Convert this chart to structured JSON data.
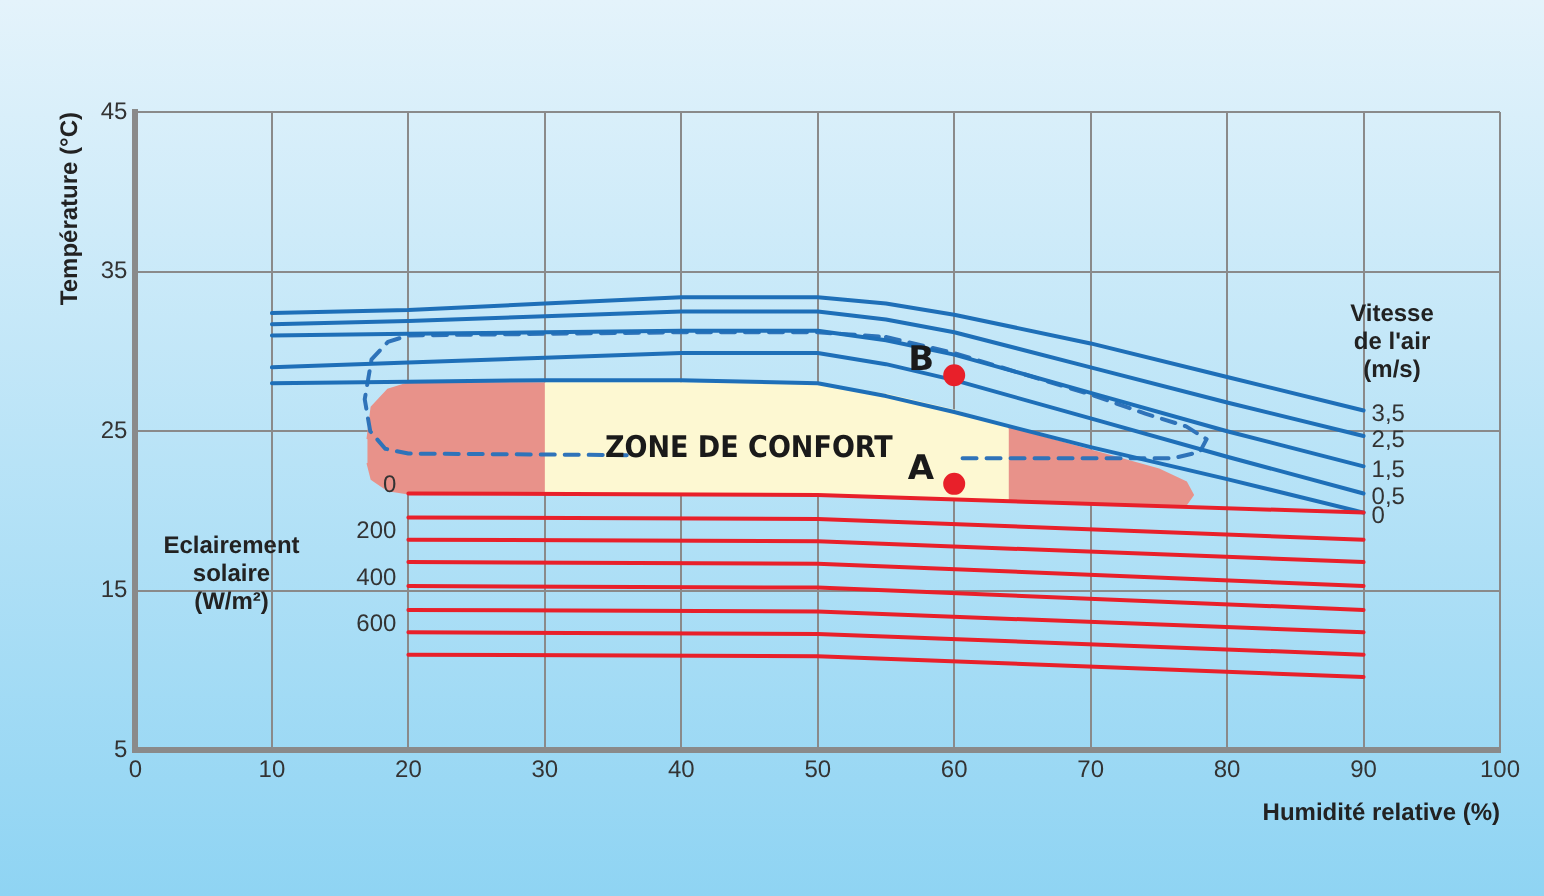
{
  "chart_data": {
    "type": "line",
    "xlabel": "Humidité relative (%)",
    "ylabel": "Température (°C)",
    "xlim": [
      0,
      100
    ],
    "xticks": [
      0,
      10,
      20,
      30,
      40,
      50,
      60,
      70,
      80,
      90,
      100
    ],
    "ylim": [
      5,
      45
    ],
    "yticks": [
      5,
      15,
      25,
      35,
      45
    ],
    "grid": true,
    "marker": "none",
    "annotations": [
      "Vitesse de l'air (m/s)",
      "Eclairement solaire (W/m²)",
      "ZONE DE CONFORT",
      {
        "text": "A",
        "x": 60,
        "y": 21.7
      },
      {
        "text": "B",
        "x": 60,
        "y": 28.5
      }
    ],
    "series": [
      {
        "type": "area",
        "color": "#e8928a",
        "x": [
          17,
          17.3,
          18.5,
          20,
          30,
          30,
          20,
          18.5,
          17.3,
          17
        ],
        "values": [
          24.5,
          26.5,
          27.6,
          28.0,
          28.0,
          21.1,
          21.1,
          21.3,
          22.0,
          23.0
        ]
      },
      {
        "type": "area",
        "color": "#fdf8d2",
        "x": [
          30,
          40,
          50,
          55,
          60,
          64,
          64,
          60,
          55,
          50,
          40,
          30
        ],
        "values": [
          28.0,
          28.0,
          27.9,
          27.3,
          26.3,
          25.2,
          20.6,
          20.7,
          20.9,
          21.0,
          21.1,
          21.1
        ]
      },
      {
        "type": "area",
        "color": "#e8928a",
        "x": [
          64,
          70,
          75,
          77,
          77.5,
          77,
          75,
          70,
          64
        ],
        "values": [
          25.2,
          23.8,
          22.6,
          21.8,
          21.0,
          20.4,
          20.4,
          20.5,
          20.6
        ]
      },
      {
        "type": "line",
        "color": "#2f73b9",
        "line_style": "dashed",
        "x": [
          55,
          60,
          65,
          70,
          74,
          77,
          78.5,
          78,
          76,
          60,
          47,
          36,
          20,
          18.3,
          17.2,
          16.8,
          17.3,
          18.5,
          20,
          30,
          40,
          50,
          55
        ],
        "values": [
          30.9,
          29.9,
          28.6,
          27.3,
          26.1,
          25.3,
          24.5,
          23.7,
          23.3,
          23.3,
          null,
          23.5,
          23.6,
          23.9,
          25.0,
          27.0,
          29.5,
          30.6,
          31.0,
          31.1,
          31.2,
          31.2,
          30.9
        ]
      },
      {
        "name": "3,5",
        "color": "#1e6fb8",
        "x": [
          10,
          20,
          30,
          40,
          50,
          55,
          60,
          70,
          80,
          90
        ],
        "values": [
          32.4,
          32.6,
          33.0,
          33.4,
          33.4,
          33.0,
          32.3,
          30.5,
          28.4,
          26.3
        ]
      },
      {
        "name": "2,5",
        "color": "#1e6fb8",
        "x": [
          10,
          20,
          30,
          40,
          50,
          55,
          60,
          70,
          80,
          90
        ],
        "values": [
          31.7,
          31.9,
          32.2,
          32.5,
          32.5,
          32.0,
          31.2,
          29.0,
          26.8,
          24.7
        ]
      },
      {
        "name": "1,5",
        "color": "#1e6fb8",
        "x": [
          10,
          20,
          30,
          40,
          50,
          55,
          60,
          70,
          80,
          90
        ],
        "values": [
          31.0,
          31.1,
          31.2,
          31.3,
          31.3,
          30.7,
          29.8,
          27.4,
          25.0,
          22.8
        ]
      },
      {
        "name": "0,5",
        "color": "#1e6fb8",
        "x": [
          10,
          20,
          30,
          40,
          50,
          55,
          60,
          70,
          80,
          90
        ],
        "values": [
          29.0,
          29.3,
          29.6,
          29.9,
          29.9,
          29.2,
          28.2,
          25.8,
          23.4,
          21.1
        ]
      },
      {
        "name": "0",
        "color": "#1e6fb8",
        "x": [
          10,
          20,
          30,
          40,
          50,
          55,
          60,
          70,
          80,
          90
        ],
        "values": [
          28.0,
          28.1,
          28.2,
          28.2,
          28.0,
          27.2,
          26.2,
          24.0,
          22.0,
          19.9
        ]
      },
      {
        "name": "0",
        "color": "#e8202a",
        "x": [
          20,
          50,
          90
        ],
        "values": [
          21.1,
          21.0,
          19.9
        ]
      },
      {
        "color": "#e8202a",
        "x": [
          20,
          50,
          90
        ],
        "values": [
          19.6,
          19.5,
          18.2
        ]
      },
      {
        "name": "200",
        "color": "#e8202a",
        "x": [
          20,
          50,
          90
        ],
        "values": [
          18.2,
          18.1,
          16.8
        ]
      },
      {
        "color": "#e8202a",
        "x": [
          20,
          50,
          90
        ],
        "values": [
          16.8,
          16.7,
          15.3
        ]
      },
      {
        "name": "400",
        "color": "#e8202a",
        "x": [
          20,
          50,
          90
        ],
        "values": [
          15.3,
          15.2,
          13.8
        ]
      },
      {
        "color": "#e8202a",
        "x": [
          20,
          50,
          90
        ],
        "values": [
          13.8,
          13.7,
          12.4
        ]
      },
      {
        "name": "600",
        "color": "#e8202a",
        "x": [
          20,
          50,
          90
        ],
        "values": [
          12.4,
          12.3,
          11.0
        ]
      },
      {
        "color": "#e8202a",
        "x": [
          20,
          50,
          90
        ],
        "values": [
          11.0,
          10.9,
          9.6
        ]
      },
      {
        "type": "scatter",
        "marker": "circle",
        "color": "#e8202a",
        "x": [
          60,
          60
        ],
        "values": [
          21.7,
          28.5
        ]
      }
    ]
  }
}
